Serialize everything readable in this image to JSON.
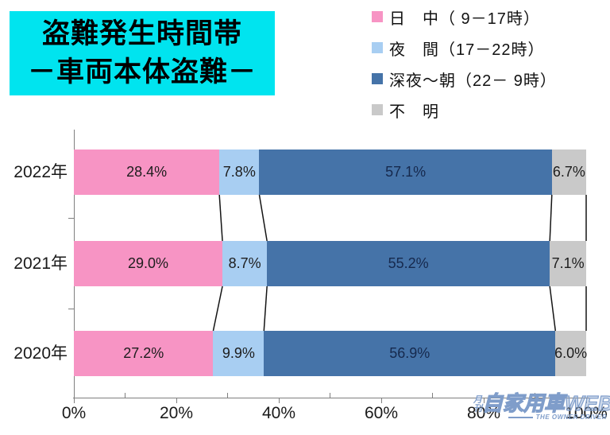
{
  "title": {
    "line1": "盗難発生時間帯",
    "line2": "－車両本体盗難－",
    "background": "#00E4EF"
  },
  "legend": [
    {
      "label": "日　中（ 9－17時）",
      "color": "#F794C4"
    },
    {
      "label": "夜　間（17－22時）",
      "color": "#A8CEF2"
    },
    {
      "label": "深夜～朝（22－ 9時）",
      "color": "#4573A8"
    },
    {
      "label": "不　明",
      "color": "#C9C9C9"
    }
  ],
  "chart_data": {
    "type": "bar",
    "orientation": "horizontal",
    "stacked": true,
    "title": "盗難発生時間帯 －車両本体盗難－",
    "categories": [
      "2022年",
      "2021年",
      "2020年"
    ],
    "series": [
      {
        "name": "日　中（ 9－17時）",
        "color": "#F794C4",
        "values": [
          28.4,
          29.0,
          27.2
        ]
      },
      {
        "name": "夜　間（17－22時）",
        "color": "#A8CEF2",
        "values": [
          7.8,
          8.7,
          9.9
        ]
      },
      {
        "name": "深夜～朝（22－ 9時）",
        "color": "#4573A8",
        "values": [
          57.1,
          55.2,
          56.9
        ]
      },
      {
        "name": "不　明",
        "color": "#C9C9C9",
        "values": [
          6.7,
          7.1,
          6.0
        ]
      }
    ],
    "x_ticks": [
      "0%",
      "20%",
      "40%",
      "60%",
      "80%",
      "100%"
    ],
    "xlim": [
      0,
      100
    ],
    "value_suffix": "%",
    "grid": false,
    "legend_position": "top-right"
  },
  "watermark": {
    "prefix": "月刊",
    "main": "自家用車WEB",
    "tagline": "THE OWNER DRIVER",
    "color": "#7F9DCA"
  }
}
